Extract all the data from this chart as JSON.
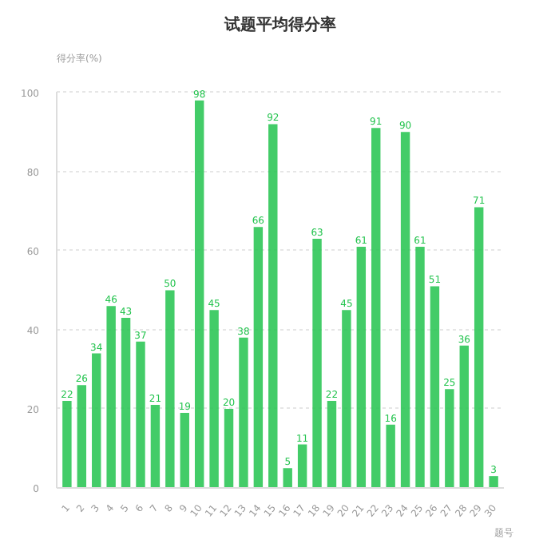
{
  "chart_data": {
    "type": "bar",
    "title": "试题平均得分率",
    "ylabel": "得分率(%)",
    "xlabel": "题号",
    "categories": [
      "1",
      "2",
      "3",
      "4",
      "5",
      "6",
      "7",
      "8",
      "9",
      "10",
      "11",
      "12",
      "13",
      "14",
      "15",
      "16",
      "17",
      "18",
      "19",
      "20",
      "21",
      "22",
      "23",
      "24",
      "25",
      "26",
      "27",
      "28",
      "29",
      "30"
    ],
    "values": [
      22,
      26,
      34,
      46,
      43,
      37,
      21,
      50,
      19,
      98,
      45,
      20,
      38,
      66,
      92,
      5,
      11,
      63,
      22,
      45,
      61,
      91,
      16,
      90,
      61,
      51,
      25,
      36,
      71,
      3
    ],
    "color": "#22c34d",
    "ylim": [
      0,
      100
    ],
    "yticks": [
      0,
      20,
      40,
      60,
      80,
      100
    ],
    "grid": "y",
    "data_labels": true
  }
}
